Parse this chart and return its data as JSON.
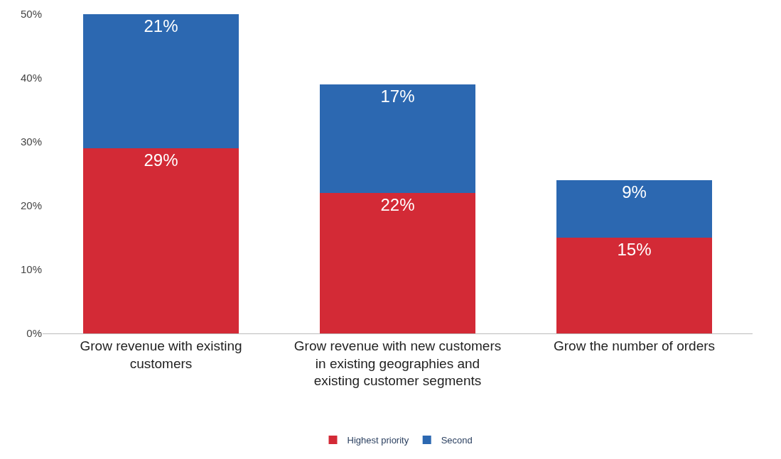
{
  "chart_data": {
    "type": "bar",
    "stacked": true,
    "categories": [
      "Grow revenue with existing customers",
      "Grow revenue with new customers in existing geographies and existing customer segments",
      "Grow the number of orders"
    ],
    "series": [
      {
        "name": "Highest priority",
        "color": "#d32a36",
        "values": [
          29,
          22,
          15
        ],
        "value_labels": [
          "29%",
          "22%",
          "15%"
        ]
      },
      {
        "name": "Second",
        "color": "#2c68b1",
        "values": [
          21,
          17,
          9
        ],
        "value_labels": [
          "21%",
          "17%",
          "9%"
        ]
      }
    ],
    "ylim": [
      0,
      50
    ],
    "yticks": [
      {
        "value": 0,
        "label": "0%"
      },
      {
        "value": 10,
        "label": "10%"
      },
      {
        "value": 20,
        "label": "20%"
      },
      {
        "value": 30,
        "label": "30%"
      },
      {
        "value": 40,
        "label": "40%"
      },
      {
        "value": 50,
        "label": "50%"
      }
    ],
    "legend": "bottom"
  }
}
